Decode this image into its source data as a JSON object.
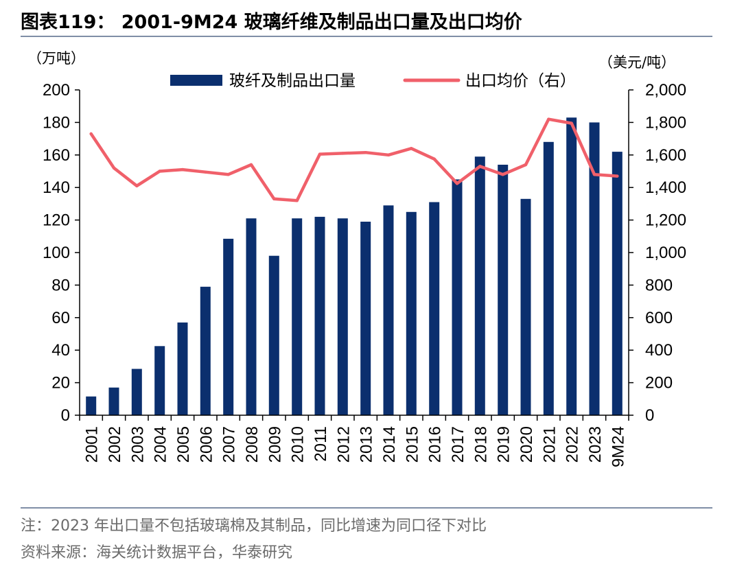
{
  "figure": {
    "title": "图表119：  2001-9M24 玻璃纤维及制品出口量及出口均价",
    "note": "注：2023 年出口量不包括玻璃棉及其制品，同比增速为同口径下对比",
    "source": "资料来源：海关统计数据平台，华泰研究"
  },
  "chart_data": {
    "type": "bar",
    "categories": [
      "2001",
      "2002",
      "2003",
      "2004",
      "2005",
      "2006",
      "2007",
      "2008",
      "2009",
      "2010",
      "2011",
      "2012",
      "2013",
      "2014",
      "2015",
      "2016",
      "2017",
      "2018",
      "2019",
      "2020",
      "2021",
      "2022",
      "2023",
      "9M24"
    ],
    "series": [
      {
        "name": "玻纤及制品出口量",
        "type": "bar",
        "axis": "left",
        "color": "#0b2f6e",
        "values": [
          11.5,
          17,
          28.5,
          42.5,
          57,
          79,
          108.5,
          121,
          98,
          121,
          122,
          121,
          119,
          129,
          125,
          131,
          145,
          159,
          154,
          133,
          168,
          183,
          180,
          162
        ]
      },
      {
        "name": "出口均价（右）",
        "type": "line",
        "axis": "right",
        "color": "#f0606a",
        "values": [
          1730,
          1520,
          1410,
          1500,
          1510,
          1495,
          1480,
          1540,
          1330,
          1320,
          1605,
          1610,
          1615,
          1600,
          1640,
          1575,
          1425,
          1530,
          1480,
          1540,
          1820,
          1795,
          1480,
          1470
        ]
      }
    ],
    "y_left": {
      "unit": "（万吨）",
      "range": [
        0,
        200
      ],
      "ticks": [
        0,
        20,
        40,
        60,
        80,
        100,
        120,
        140,
        160,
        180,
        200
      ],
      "tick_labels": [
        "0",
        "20",
        "40",
        "60",
        "80",
        "100",
        "120",
        "140",
        "160",
        "180",
        "200"
      ]
    },
    "y_right": {
      "unit": "（美元/吨）",
      "range": [
        0,
        2000
      ],
      "ticks": [
        0,
        200,
        400,
        600,
        800,
        1000,
        1200,
        1400,
        1600,
        1800,
        2000
      ],
      "tick_labels": [
        "0",
        "200",
        "400",
        "600",
        "800",
        "1,000",
        "1,200",
        "1,400",
        "1,600",
        "1,800",
        "2,000"
      ]
    },
    "legend": {
      "placement": "top"
    },
    "grid": false
  }
}
